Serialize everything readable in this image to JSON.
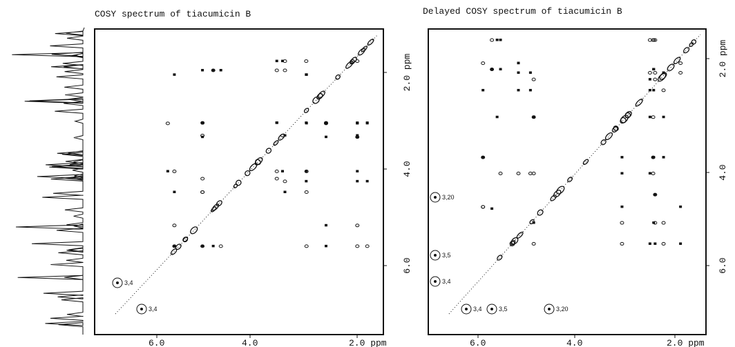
{
  "panels": [
    {
      "title": "COSY spectrum of tiacumicin B",
      "x_ticks": [
        "6.0",
        "4.0",
        "2.0 ppm"
      ],
      "y_ticks": [
        "2.0 ppm",
        "4.0",
        "6.0"
      ],
      "annotations": [
        "3,4",
        "3,4"
      ]
    },
    {
      "title": "Delayed COSY spectrum of tiacumicin B",
      "x_ticks": [
        "6.0",
        "4.0",
        "2.0 ppm"
      ],
      "y_ticks": [
        "2.0 ppm",
        "4.0",
        "6.0"
      ],
      "annotations": [
        "3,20",
        "3,5",
        "3,4",
        "3,4",
        "3,5",
        "3,20"
      ]
    }
  ]
}
